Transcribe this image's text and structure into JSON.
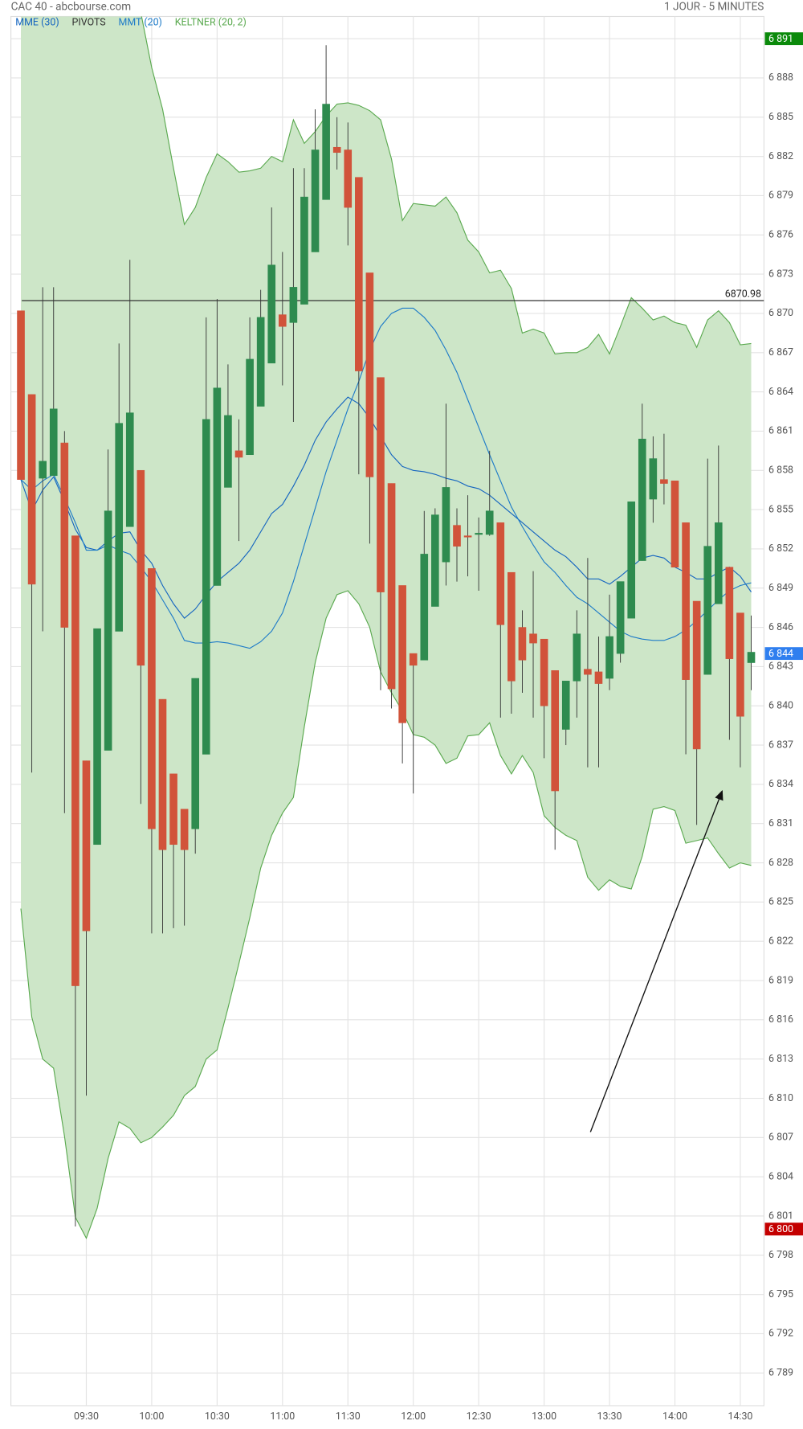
{
  "chart_data": {
    "type": "candlestick",
    "title": "CAC 40 - abcbourse.com",
    "subtitle": "1 JOUR - 5 MINUTES",
    "categories": [
      null,
      null,
      null,
      null,
      null,
      null,
      "09:30",
      null,
      null,
      null,
      null,
      null,
      "10:00",
      null,
      null,
      null,
      null,
      null,
      "10:30",
      null,
      null,
      null,
      null,
      null,
      "11:00",
      null,
      null,
      null,
      null,
      null,
      "11:30",
      null,
      null,
      null,
      null,
      null,
      "12:00",
      null,
      null,
      null,
      null,
      null,
      "12:30",
      null,
      null,
      null,
      null,
      null,
      "13:00",
      null,
      null,
      null,
      null,
      null,
      "13:30",
      null,
      null,
      null,
      null,
      null,
      "14:00",
      null,
      null,
      null,
      null,
      null,
      "14:30",
      null
    ],
    "open": [
      6870.2,
      6863.8,
      6857.4,
      6857.6,
      6860.1,
      6853.0,
      6835.8,
      6829.4,
      6836.6,
      6845.7,
      6853.7,
      6858.0,
      6850.5,
      6840.5,
      6834.8,
      6832.1,
      6830.6,
      6836.3,
      6849.2,
      6856.7,
      6859.5,
      6859.2,
      6862.9,
      6866.2,
      6869.9,
      6869.3,
      6870.7,
      6874.7,
      6878.7,
      6882.7,
      6882.5,
      6880.4,
      6873.1,
      6865.1,
      6857.0,
      6849.2,
      6844.0,
      6843.5,
      6847.6,
      6851.0,
      6853.8,
      6853.0,
      6853.1,
      6853.1,
      6854.0,
      6850.2,
      6846.0,
      6845.5,
      6845.1,
      6842.7,
      6838.2,
      6841.9,
      6842.8,
      6842.6,
      6842.1,
      6844.0,
      6846.7,
      6851.1,
      6855.8,
      6857.3,
      6857.2,
      6854.0,
      6848.0,
      6842.4,
      6847.8,
      6850.6,
      6847.1,
      6843.3
    ],
    "high": [
      6870.2,
      6863.8,
      6872.0,
      6872.0,
      6861.0,
      6853.0,
      6835.8,
      6845.9,
      6859.6,
      6867.7,
      6874.1,
      6858.0,
      6850.5,
      6840.5,
      6834.8,
      6832.1,
      6842.1,
      6869.7,
      6871.1,
      6866.1,
      6861.9,
      6869.7,
      6871.8,
      6878.1,
      6874.7,
      6881.1,
      6881.1,
      6885.6,
      6890.5,
      6885.0,
      6884.6,
      6880.4,
      6873.1,
      6865.1,
      6857.0,
      6849.2,
      6844.0,
      6854.9,
      6855.1,
      6863.1,
      6855.1,
      6856.1,
      6854.4,
      6859.5,
      6854.0,
      6850.2,
      6847.3,
      6850.3,
      6845.1,
      6842.7,
      6841.9,
      6847.3,
      6851.3,
      6845.3,
      6848.5,
      6849.5,
      6855.6,
      6863.1,
      6860.6,
      6860.8,
      6857.2,
      6854.0,
      6848.0,
      6858.9,
      6859.9,
      6850.6,
      6847.1,
      6846.9
    ],
    "low": [
      6857.3,
      6834.9,
      6845.7,
      6857.6,
      6831.8,
      6800.2,
      6810.2,
      6829.4,
      6836.6,
      6845.7,
      6853.7,
      6832.5,
      6822.6,
      6822.6,
      6823.0,
      6823.2,
      6828.7,
      6836.3,
      6849.2,
      6856.7,
      6852.6,
      6859.2,
      6862.9,
      6866.2,
      6864.5,
      6861.7,
      6870.7,
      6874.7,
      6878.7,
      6881.0,
      6875.2,
      6857.7,
      6852.4,
      6841.2,
      6839.8,
      6835.6,
      6833.3,
      6843.5,
      6847.6,
      6849.2,
      6849.5,
      6849.9,
      6848.8,
      6853.0,
      6839.1,
      6839.4,
      6841.0,
      6839.1,
      6836.0,
      6829.0,
      6837.0,
      6839.1,
      6835.3,
      6835.3,
      6841.2,
      6843.3,
      6846.7,
      6851.1,
      6854.0,
      6855.4,
      6850.6,
      6836.3,
      6830.9,
      6842.4,
      6847.8,
      6837.4,
      6835.3,
      6841.2
    ],
    "close": [
      6857.3,
      6849.3,
      6858.7,
      6862.7,
      6846.0,
      6818.6,
      6822.8,
      6845.9,
      6854.9,
      6861.6,
      6862.4,
      6843.1,
      6830.6,
      6829.0,
      6829.4,
      6829.0,
      6842.1,
      6861.9,
      6864.3,
      6862.2,
      6859.0,
      6866.5,
      6869.7,
      6873.7,
      6869.0,
      6872.0,
      6878.9,
      6882.5,
      6886.0,
      6882.3,
      6878.1,
      6865.6,
      6857.5,
      6848.7,
      6841.3,
      6838.7,
      6843.1,
      6851.6,
      6854.6,
      6856.7,
      6852.2,
      6852.9,
      6853.2,
      6854.9,
      6846.2,
      6841.9,
      6843.5,
      6844.8,
      6840.0,
      6833.5,
      6841.9,
      6845.5,
      6842.4,
      6841.7,
      6845.3,
      6849.5,
      6855.6,
      6860.4,
      6858.9,
      6857.0,
      6850.6,
      6842.0,
      6836.7,
      6852.2,
      6854.0,
      6843.6,
      6839.2,
      6844.1
    ],
    "up_color": "#2e8b4f",
    "down_color": "#d1533a",
    "ylim": [
      6786.5,
      6892.7
    ],
    "yticks": [
      {
        "value": 6891,
        "label": "6 891"
      },
      {
        "value": 6888,
        "label": "6 888"
      },
      {
        "value": 6885,
        "label": "6 885"
      },
      {
        "value": 6882,
        "label": "6 882"
      },
      {
        "value": 6879,
        "label": "6 879"
      },
      {
        "value": 6876,
        "label": "6 876"
      },
      {
        "value": 6873,
        "label": "6 873"
      },
      {
        "value": 6870,
        "label": "6 870"
      },
      {
        "value": 6867,
        "label": "6 867"
      },
      {
        "value": 6864,
        "label": "6 864"
      },
      {
        "value": 6861,
        "label": "6 861"
      },
      {
        "value": 6858,
        "label": "6 858"
      },
      {
        "value": 6855,
        "label": "6 855"
      },
      {
        "value": 6852,
        "label": "6 852"
      },
      {
        "value": 6849,
        "label": "6 849"
      },
      {
        "value": 6846,
        "label": "6 846"
      },
      {
        "value": 6843,
        "label": "6 843"
      },
      {
        "value": 6840,
        "label": "6 840"
      },
      {
        "value": 6837,
        "label": "6 837"
      },
      {
        "value": 6834,
        "label": "6 834"
      },
      {
        "value": 6831,
        "label": "6 831"
      },
      {
        "value": 6828,
        "label": "6 828"
      },
      {
        "value": 6825,
        "label": "6 825"
      },
      {
        "value": 6822,
        "label": "6 822"
      },
      {
        "value": 6819,
        "label": "6 819"
      },
      {
        "value": 6816,
        "label": "6 816"
      },
      {
        "value": 6813,
        "label": "6 813"
      },
      {
        "value": 6810,
        "label": "6 810"
      },
      {
        "value": 6807,
        "label": "6 807"
      },
      {
        "value": 6804,
        "label": "6 804"
      },
      {
        "value": 6801,
        "label": "6 801"
      },
      {
        "value": 6798,
        "label": "6 798"
      },
      {
        "value": 6795,
        "label": "6 795"
      },
      {
        "value": 6792,
        "label": "6 792"
      },
      {
        "value": 6789,
        "label": "6 789"
      }
    ],
    "grid": true,
    "keltner": {
      "name": "KELTNER (20, 2)",
      "color": "#5aa94f",
      "fill": "#cde6c8",
      "upper": [
        6893,
        6893,
        6893,
        6893,
        6893,
        6893,
        6893,
        6893,
        6893,
        6893,
        6893,
        6893,
        6888.8,
        6885.6,
        6881.1,
        6876.8,
        6878.1,
        6880.4,
        6882.2,
        6881.6,
        6880.8,
        6880.9,
        6881.1,
        6882.0,
        6881.6,
        6884.8,
        6883.0,
        6883.9,
        6885.1,
        6886.0,
        6886.1,
        6885.9,
        6885.5,
        6884.8,
        6881.8,
        6877.1,
        6878.4,
        6878.3,
        6878.2,
        6878.9,
        6877.7,
        6875.6,
        6874.7,
        6873.1,
        6873.3,
        6871.9,
        6868.5,
        6868.8,
        6868.5,
        6866.9,
        6867.0,
        6867.0,
        6867.4,
        6868.4,
        6866.9,
        6869.0,
        6871.2,
        6870.4,
        6869.5,
        6869.8,
        6869.3,
        6869.1,
        6867.4,
        6869.5,
        6870.2,
        6869.3,
        6867.6,
        6867.7
      ],
      "lower": [
        6824.5,
        6816.2,
        6813.0,
        6812.3,
        6807.1,
        6800.9,
        6799.3,
        6801.6,
        6805.4,
        6808.2,
        6807.7,
        6806.6,
        6807.0,
        6807.8,
        6808.7,
        6810.2,
        6810.9,
        6813.0,
        6813.7,
        6816.9,
        6820.3,
        6823.8,
        6827.6,
        6830.1,
        6831.8,
        6833.0,
        6838.4,
        6843.3,
        6846.7,
        6848.5,
        6848.8,
        6847.8,
        6846.0,
        6842.6,
        6841.0,
        6839.6,
        6837.8,
        6837.6,
        6837.0,
        6835.6,
        6836.0,
        6837.7,
        6837.8,
        6838.7,
        6836.2,
        6834.8,
        6836.2,
        6834.9,
        6831.6,
        6830.7,
        6830.1,
        6829.7,
        6826.9,
        6825.9,
        6826.7,
        6826.2,
        6826.0,
        6828.5,
        6832.1,
        6832.3,
        6832.0,
        6829.5,
        6829.7,
        6829.9,
        6828.7,
        6827.6,
        6828.0,
        6827.8
      ]
    },
    "overlays": [
      {
        "name": "MME (30)",
        "color": "#1565c0",
        "values": [
          6857.3,
          6854.9,
          6856.5,
          6857.5,
          6855.6,
          6853.5,
          6852.1,
          6851.9,
          6852.6,
          6853.2,
          6853.3,
          6851.9,
          6850.9,
          6849.2,
          6847.8,
          6846.7,
          6847.4,
          6848.5,
          6849.5,
          6850.2,
          6850.9,
          6851.9,
          6853.3,
          6854.7,
          6855.4,
          6856.8,
          6858.4,
          6860.3,
          6861.7,
          6862.7,
          6863.6,
          6863.1,
          6862.0,
          6860.6,
          6859.2,
          6858.3,
          6858.0,
          6857.9,
          6857.7,
          6857.4,
          6857.2,
          6856.8,
          6856.6,
          6856.1,
          6855.4,
          6854.7,
          6854.0,
          6853.3,
          6852.6,
          6851.9,
          6851.4,
          6850.6,
          6849.7,
          6849.7,
          6849.3,
          6849.9,
          6850.6,
          6851.3,
          6851.5,
          6851.3,
          6850.6,
          6850.2,
          6849.7,
          6849.7,
          6850.2,
          6850.6,
          6849.9,
          6848.7
        ]
      },
      {
        "name": "MMT (20)",
        "color": "#1e7bc8",
        "values": [
          6857.3,
          6856.5,
          6857.2,
          6857.7,
          6855.9,
          6854.0,
          6851.9,
          6851.9,
          6852.3,
          6851.9,
          6851.6,
          6850.6,
          6849.5,
          6848.1,
          6846.7,
          6845.0,
          6844.8,
          6844.8,
          6844.9,
          6844.8,
          6844.6,
          6844.4,
          6844.9,
          6845.7,
          6847.1,
          6849.5,
          6852.3,
          6855.1,
          6857.9,
          6860.3,
          6862.7,
          6864.8,
          6867.2,
          6869.0,
          6870.0,
          6870.4,
          6870.4,
          6869.7,
          6868.7,
          6867.2,
          6865.5,
          6863.4,
          6861.3,
          6859.2,
          6857.2,
          6855.2,
          6853.7,
          6852.3,
          6851.0,
          6850.2,
          6849.2,
          6848.3,
          6847.8,
          6847.1,
          6846.4,
          6845.7,
          6845.3,
          6845.1,
          6845.0,
          6845.0,
          6845.3,
          6845.8,
          6846.5,
          6847.3,
          6848.1,
          6848.8,
          6849.2,
          6849.4
        ]
      }
    ],
    "pivots": {
      "name": "PIVOTS",
      "color": "#333333",
      "value": 6870.98
    },
    "price_tags": [
      {
        "value": 6891,
        "label": "6 891",
        "color": "#0b8a0b"
      },
      {
        "value": 6844,
        "label": "6 844",
        "color": "#2f7fef"
      },
      {
        "value": 6800,
        "label": "6 800",
        "color": "#c40000"
      }
    ]
  }
}
